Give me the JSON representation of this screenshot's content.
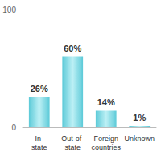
{
  "chart_data": {
    "type": "bar",
    "categories": [
      "In-state",
      "Out-of-state",
      "Foreign countries",
      "Unknown"
    ],
    "values": [
      26,
      60,
      14,
      1
    ],
    "value_labels": [
      "26%",
      "60%",
      "14%",
      "1%"
    ],
    "data_labels": true,
    "color": "#5ccad8",
    "ylim": [
      0,
      100
    ],
    "yticks": [
      0,
      100
    ],
    "grid": true
  }
}
